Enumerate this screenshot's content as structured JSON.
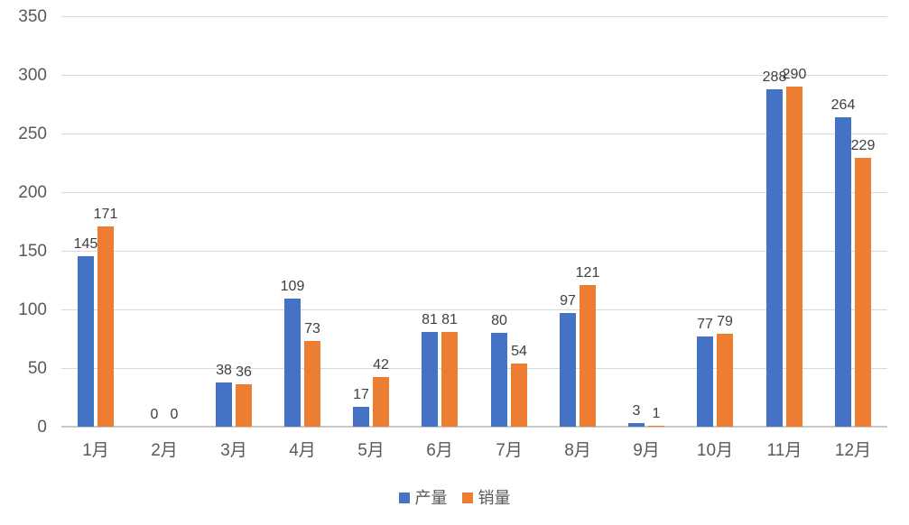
{
  "chart_data": {
    "type": "bar",
    "title": "",
    "categories": [
      "1月",
      "2月",
      "3月",
      "4月",
      "5月",
      "6月",
      "7月",
      "8月",
      "9月",
      "10月",
      "11月",
      "12月"
    ],
    "series": [
      {
        "name": "产量",
        "color": "#4472C4",
        "values": [
          145,
          0,
          38,
          109,
          17,
          81,
          80,
          97,
          3,
          77,
          288,
          264
        ]
      },
      {
        "name": "销量",
        "color": "#ED7D31",
        "values": [
          171,
          0,
          36,
          73,
          42,
          81,
          54,
          121,
          1,
          79,
          290,
          229
        ]
      }
    ],
    "ylim": [
      0,
      350
    ],
    "yticks": [
      0,
      50,
      100,
      150,
      200,
      250,
      300,
      350
    ],
    "xlabel": "",
    "ylabel": "",
    "grid": "horizontal",
    "data_labels": true,
    "legend_position": "bottom"
  },
  "colors": {
    "series_production": "#4472C4",
    "series_sales": "#ED7D31",
    "gridline": "#d9d9d9",
    "axis_text": "#595959",
    "data_label_text": "#404040",
    "background": "#ffffff"
  },
  "legend": {
    "items": [
      {
        "label": "产量",
        "color": "#4472C4"
      },
      {
        "label": "销量",
        "color": "#ED7D31"
      }
    ]
  }
}
